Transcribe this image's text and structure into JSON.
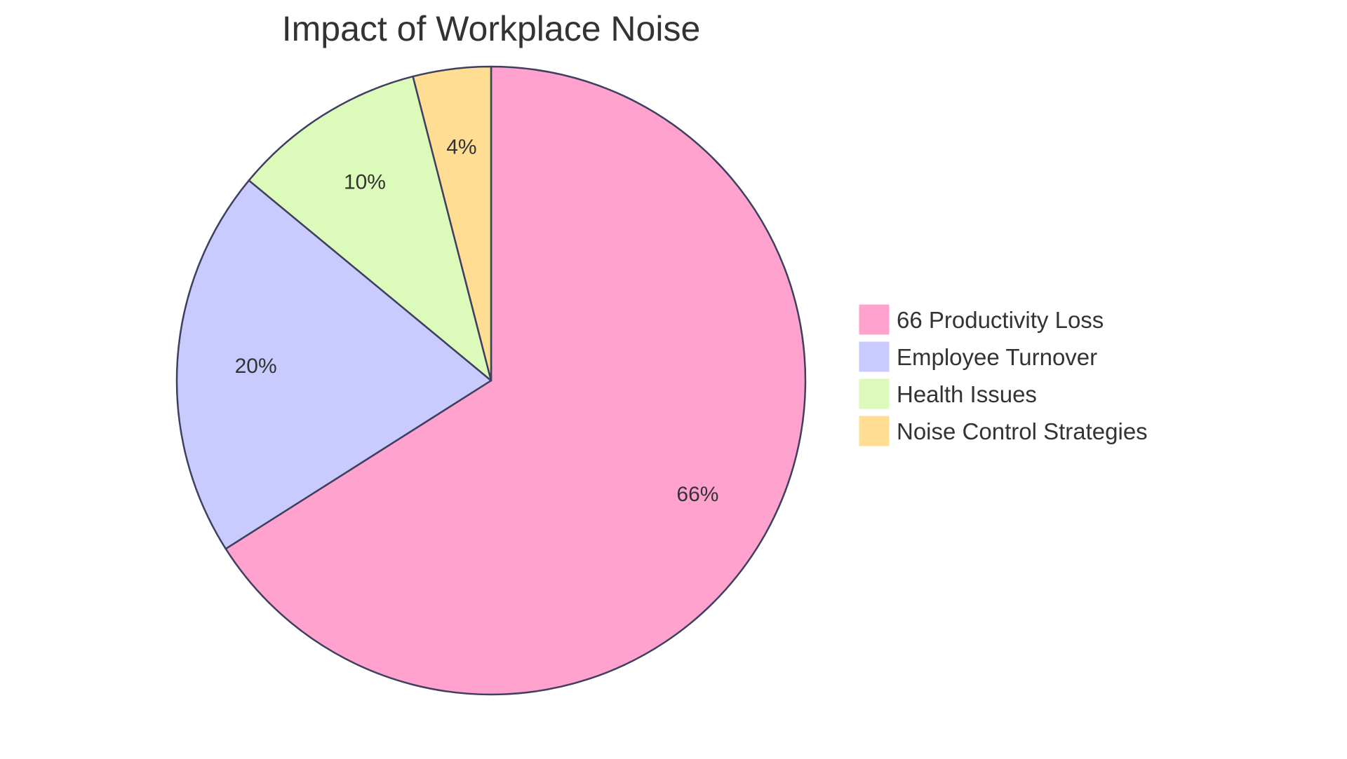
{
  "chart_data": {
    "type": "pie",
    "title": "Impact of Workplace Noise",
    "categories": [
      "66 Productivity Loss",
      "Employee Turnover",
      "Health Issues",
      "Noise Control Strategies"
    ],
    "values": [
      66,
      20,
      10,
      4
    ],
    "labels": [
      "66%",
      "20%",
      "10%",
      "4%"
    ],
    "colors": [
      "#FFA3CE",
      "#C9CBFF",
      "#DCFABA",
      "#FFDE94"
    ],
    "stroke_color": "#3F3F5F",
    "legend_position": "right",
    "start_angle": "top",
    "direction": "clockwise"
  }
}
